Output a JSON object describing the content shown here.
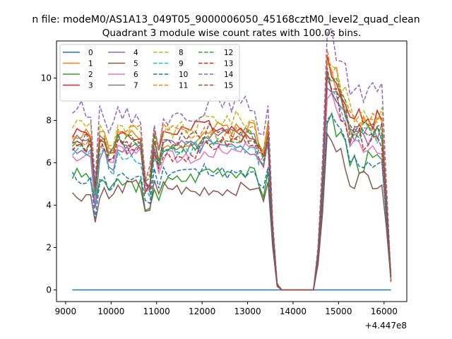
{
  "chart_data": {
    "type": "line",
    "suptitle": "n file: modeM0/AS1A13_049T05_9000006050_45168cztM0_level2_quad_clean",
    "title": "Quadrant 3 module wise count rates with 100.0s bins.",
    "xlabel": "",
    "ylabel": "",
    "x_offset_label": "+4.447e8",
    "xlim": [
      8800,
      16500
    ],
    "ylim": [
      -0.55,
      11.75
    ],
    "xticks": [
      9000,
      10000,
      11000,
      12000,
      13000,
      14000,
      15000,
      16000
    ],
    "xtick_labels": [
      "9000",
      "10000",
      "11000",
      "12000",
      "13000",
      "14000",
      "15000",
      "16000"
    ],
    "yticks": [
      0,
      2,
      4,
      6,
      8,
      10
    ],
    "ytick_labels": [
      "0",
      "2",
      "4",
      "6",
      "8",
      "10"
    ],
    "grid": false,
    "legend_position": "top-left",
    "legend_columns": 4,
    "x_range": [
      9150,
      16150
    ],
    "bin": 100,
    "gap": [
      13700,
      14500
    ],
    "series": [
      {
        "name": "0",
        "color": "#1f77b4",
        "dash": "solid",
        "base": 0.0,
        "amp": 0.0,
        "seed": 1,
        "dip": 0.0,
        "post": 0.0
      },
      {
        "name": "1",
        "color": "#ff7f0e",
        "dash": "solid",
        "base": 7.2,
        "amp": 0.35,
        "seed": 2,
        "dip": 2.8,
        "post": 8.0
      },
      {
        "name": "2",
        "color": "#2ca02c",
        "dash": "solid",
        "base": 5.2,
        "amp": 0.35,
        "seed": 3,
        "dip": 1.7,
        "post": 6.2
      },
      {
        "name": "3",
        "color": "#d62728",
        "dash": "solid",
        "base": 7.4,
        "amp": 0.35,
        "seed": 4,
        "dip": 2.8,
        "post": 8.2
      },
      {
        "name": "4",
        "color": "#9467bd",
        "dash": "solid",
        "base": 6.6,
        "amp": 0.3,
        "seed": 5,
        "dip": 2.2,
        "post": 7.4
      },
      {
        "name": "5",
        "color": "#8c564b",
        "dash": "solid",
        "base": 4.7,
        "amp": 0.3,
        "seed": 6,
        "dip": 1.4,
        "post": 5.4
      },
      {
        "name": "6",
        "color": "#e377c2",
        "dash": "solid",
        "base": 6.4,
        "amp": 0.3,
        "seed": 7,
        "dip": 2.0,
        "post": 7.0
      },
      {
        "name": "7",
        "color": "#7f7f7f",
        "dash": "solid",
        "base": 6.9,
        "amp": 0.3,
        "seed": 8,
        "dip": 2.4,
        "post": 7.6
      },
      {
        "name": "8",
        "color": "#bcbd22",
        "dash": "dashed",
        "base": 7.6,
        "amp": 0.4,
        "seed": 9,
        "dip": 2.9,
        "post": 8.4
      },
      {
        "name": "9",
        "color": "#17becf",
        "dash": "dashed",
        "base": 6.5,
        "amp": 0.35,
        "seed": 10,
        "dip": 2.1,
        "post": 7.3
      },
      {
        "name": "10",
        "color": "#1f77b4",
        "dash": "dashed",
        "base": 5.4,
        "amp": 0.3,
        "seed": 11,
        "dip": 1.6,
        "post": 6.2
      },
      {
        "name": "11",
        "color": "#ff7f0e",
        "dash": "dashed",
        "base": 7.3,
        "amp": 0.35,
        "seed": 12,
        "dip": 2.6,
        "post": 8.3
      },
      {
        "name": "12",
        "color": "#2ca02c",
        "dash": "dashed",
        "base": 6.9,
        "amp": 0.35,
        "seed": 13,
        "dip": 2.3,
        "post": 7.8
      },
      {
        "name": "13",
        "color": "#d62728",
        "dash": "dashed",
        "base": 6.6,
        "amp": 0.35,
        "seed": 14,
        "dip": 2.2,
        "post": 7.3
      },
      {
        "name": "14",
        "color": "#9467bd",
        "dash": "dashed",
        "base": 8.3,
        "amp": 0.4,
        "seed": 15,
        "dip": 3.2,
        "post": 9.3
      },
      {
        "name": "15",
        "color": "#8c564b",
        "dash": "dashed",
        "base": 7.0,
        "amp": 0.35,
        "seed": 16,
        "dip": 2.4,
        "post": 7.6
      }
    ]
  }
}
